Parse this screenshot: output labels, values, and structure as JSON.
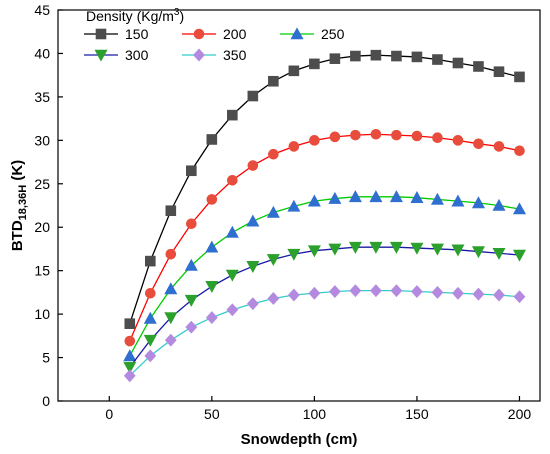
{
  "chart_data": {
    "type": "line",
    "xlabel": "Snowdepth (cm)",
    "ylabel_main": "BTD",
    "ylabel_sub": "18,36H",
    "ylabel_unit": " (K)",
    "xlim": [
      -25,
      210
    ],
    "ylim": [
      0,
      45
    ],
    "xticks": [
      0,
      50,
      100,
      150,
      200
    ],
    "yticks": [
      0,
      5,
      10,
      15,
      20,
      25,
      30,
      35,
      40,
      45
    ],
    "grid": false,
    "legend": {
      "title_main": "Density (Kg/m",
      "title_sup": "3",
      "title_end": ")",
      "placement": "top-left"
    },
    "x": [
      10,
      20,
      30,
      40,
      50,
      60,
      70,
      80,
      90,
      100,
      110,
      120,
      130,
      140,
      150,
      160,
      170,
      180,
      190,
      200
    ],
    "series": [
      {
        "name": "150",
        "marker": "square",
        "line_color": "#000000",
        "marker_color": "#4d4d4d",
        "values": [
          8.9,
          16.1,
          21.9,
          26.5,
          30.1,
          32.9,
          35.1,
          36.8,
          38.0,
          38.8,
          39.4,
          39.7,
          39.8,
          39.7,
          39.6,
          39.3,
          38.9,
          38.5,
          37.9,
          37.3
        ]
      },
      {
        "name": "200",
        "marker": "circle",
        "line_color": "#ff0000",
        "marker_color": "#e74c3c",
        "values": [
          6.9,
          12.4,
          16.9,
          20.4,
          23.2,
          25.4,
          27.1,
          28.4,
          29.3,
          30.0,
          30.4,
          30.6,
          30.7,
          30.6,
          30.5,
          30.3,
          30.0,
          29.6,
          29.3,
          28.8
        ]
      },
      {
        "name": "250",
        "marker": "triangle-up",
        "line_color": "#00cc00",
        "marker_color": "#2f6fd0",
        "values": [
          5.2,
          9.5,
          12.9,
          15.6,
          17.7,
          19.4,
          20.7,
          21.7,
          22.4,
          23.0,
          23.3,
          23.5,
          23.5,
          23.5,
          23.4,
          23.2,
          23.0,
          22.8,
          22.5,
          22.1
        ]
      },
      {
        "name": "300",
        "marker": "triangle-down",
        "line_color": "#1a1aa6",
        "marker_color": "#2ca02c",
        "values": [
          3.9,
          7.0,
          9.6,
          11.6,
          13.2,
          14.5,
          15.5,
          16.3,
          16.9,
          17.3,
          17.5,
          17.7,
          17.7,
          17.7,
          17.6,
          17.5,
          17.4,
          17.2,
          17.0,
          16.8
        ]
      },
      {
        "name": "350",
        "marker": "diamond",
        "line_color": "#33cccc",
        "marker_color": "#b48ae0",
        "values": [
          2.9,
          5.2,
          7.0,
          8.5,
          9.6,
          10.5,
          11.2,
          11.8,
          12.2,
          12.4,
          12.6,
          12.7,
          12.7,
          12.7,
          12.6,
          12.5,
          12.4,
          12.3,
          12.2,
          12.0
        ]
      }
    ]
  }
}
